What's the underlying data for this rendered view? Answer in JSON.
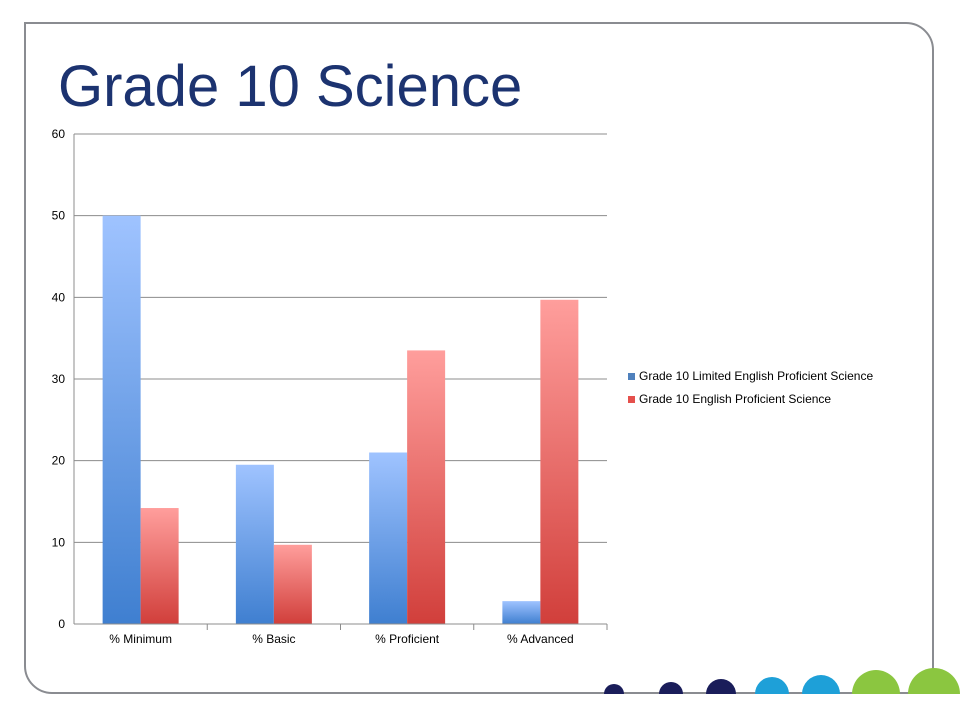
{
  "slide": {
    "title": "Grade 10 Science"
  },
  "chart_data": {
    "type": "bar",
    "title": "",
    "xlabel": "",
    "ylabel": "",
    "categories": [
      "% Minimum",
      "% Basic",
      "% Proficient",
      "% Advanced"
    ],
    "series": [
      {
        "name": "Grade 10 Limited English Proficient Science",
        "values": [
          50,
          19.5,
          21,
          2.8
        ],
        "color_top": "#9fc3ff",
        "color_bottom": "#3f7fd0",
        "legend_color": "#4f81bd"
      },
      {
        "name": "Grade 10 English Proficient Science",
        "values": [
          14.2,
          9.7,
          33.5,
          39.7
        ],
        "color_top": "#ff9e9c",
        "color_bottom": "#d13f3b",
        "legend_color": "#e5504c"
      }
    ],
    "ylim": [
      0,
      60
    ],
    "yticks": [
      0,
      10,
      20,
      30,
      40,
      50,
      60
    ],
    "grid": true,
    "legend_position": "right"
  },
  "decor": {
    "dot_colors": [
      "#1a1d5a",
      "#1a1d5a",
      "#1a1d5a",
      "#1ea0d8",
      "#1ea0d8",
      "#8bc640",
      "#8bc640"
    ]
  }
}
